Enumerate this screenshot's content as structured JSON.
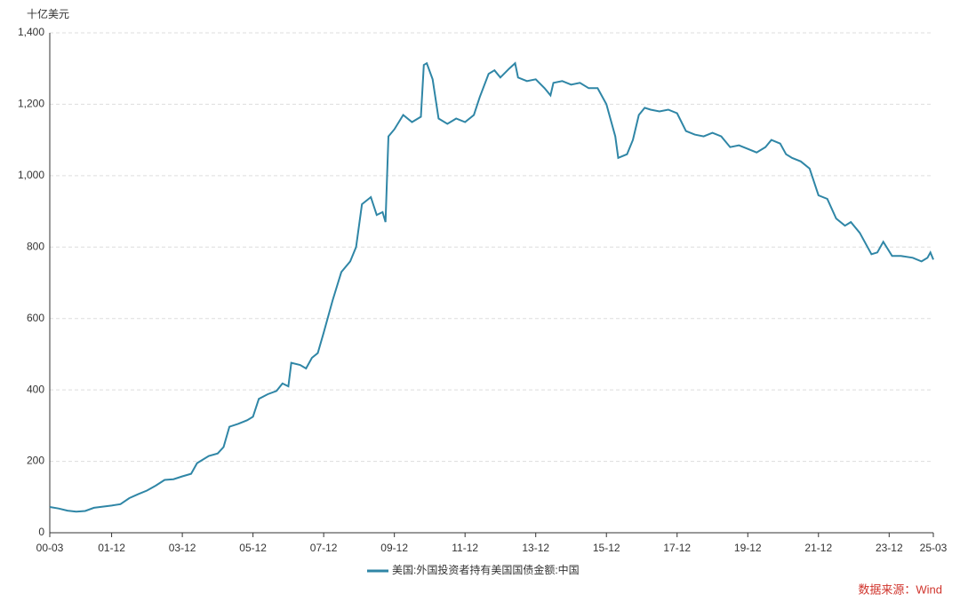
{
  "chart_data": {
    "type": "line",
    "y_axis_label": "十亿美元",
    "source": "数据来源：Wind",
    "x": [
      "00-03",
      "00-06",
      "00-09",
      "00-12",
      "01-03",
      "01-06",
      "01-09",
      "01-12",
      "02-03",
      "02-06",
      "02-09",
      "02-12",
      "03-03",
      "03-06",
      "03-09",
      "03-12",
      "04-03",
      "04-05",
      "04-09",
      "04-12",
      "05-02",
      "05-04",
      "05-07",
      "05-10",
      "05-12",
      "06-02",
      "06-05",
      "06-08",
      "06-10",
      "06-12",
      "07-01",
      "07-04",
      "07-06",
      "07-08",
      "07-10",
      "07-12",
      "08-03",
      "08-06",
      "08-09",
      "08-11",
      "09-01",
      "09-04",
      "09-06",
      "09-08",
      "09-09",
      "09-10",
      "09-12",
      "10-03",
      "10-06",
      "10-09",
      "10-10",
      "10-11",
      "11-01",
      "11-03",
      "11-06",
      "11-09",
      "11-12",
      "12-03",
      "12-05",
      "12-08",
      "12-10",
      "12-12",
      "13-03",
      "13-05",
      "13-06",
      "13-09",
      "13-12",
      "14-03",
      "14-05",
      "14-06",
      "14-09",
      "14-12",
      "15-03",
      "15-06",
      "15-09",
      "15-12",
      "16-03",
      "16-04",
      "16-07",
      "16-09",
      "16-11",
      "17-01",
      "17-03",
      "17-06",
      "17-09",
      "17-12",
      "18-03",
      "18-06",
      "18-09",
      "18-12",
      "19-03",
      "19-06",
      "19-09",
      "19-12",
      "20-03",
      "20-06",
      "20-08",
      "20-11",
      "21-01",
      "21-03",
      "21-06",
      "21-09",
      "21-12",
      "22-03",
      "22-06",
      "22-09",
      "22-11",
      "23-02",
      "23-06",
      "23-08",
      "23-10",
      "24-01",
      "24-04",
      "24-08",
      "24-11",
      "25-01",
      "25-02",
      "25-03"
    ],
    "series": [
      {
        "name": "美国:外国投资者持有美国国债金额:中国",
        "color": "#2f86a6",
        "values": [
          72,
          68,
          62,
          59,
          61,
          70,
          73,
          76,
          80,
          97,
          108,
          118,
          132,
          148,
          150,
          158,
          165,
          195,
          215,
          222,
          240,
          297,
          305,
          315,
          325,
          375,
          388,
          397,
          418,
          410,
          476,
          470,
          460,
          490,
          503,
          560,
          650,
          730,
          760,
          800,
          920,
          940,
          890,
          898,
          870,
          1110,
          1130,
          1170,
          1150,
          1165,
          1310,
          1315,
          1270,
          1160,
          1145,
          1160,
          1150,
          1170,
          1220,
          1285,
          1295,
          1275,
          1300,
          1315,
          1275,
          1265,
          1270,
          1245,
          1225,
          1260,
          1265,
          1255,
          1260,
          1245,
          1245,
          1200,
          1110,
          1050,
          1060,
          1100,
          1170,
          1190,
          1185,
          1180,
          1185,
          1175,
          1125,
          1115,
          1110,
          1120,
          1110,
          1080,
          1085,
          1075,
          1065,
          1080,
          1100,
          1090,
          1060,
          1050,
          1040,
          1020,
          945,
          935,
          880,
          860,
          870,
          840,
          780,
          785,
          815,
          775,
          775,
          770,
          760,
          770,
          785,
          765
        ]
      }
    ],
    "xlim": [
      "00-03",
      "25-03"
    ],
    "xticks": [
      "00-03",
      "01-12",
      "03-12",
      "05-12",
      "07-12",
      "09-12",
      "11-12",
      "13-12",
      "15-12",
      "17-12",
      "19-12",
      "21-12",
      "23-12",
      "25-03"
    ],
    "ylim": [
      0,
      1400
    ],
    "yticks": [
      0,
      200,
      400,
      600,
      800,
      {
        "value": 1000,
        "label": "1,000"
      },
      {
        "value": 1200,
        "label": "1,200"
      },
      {
        "value": 1400,
        "label": "1,400"
      }
    ],
    "grid": true,
    "legend": "bottom"
  }
}
